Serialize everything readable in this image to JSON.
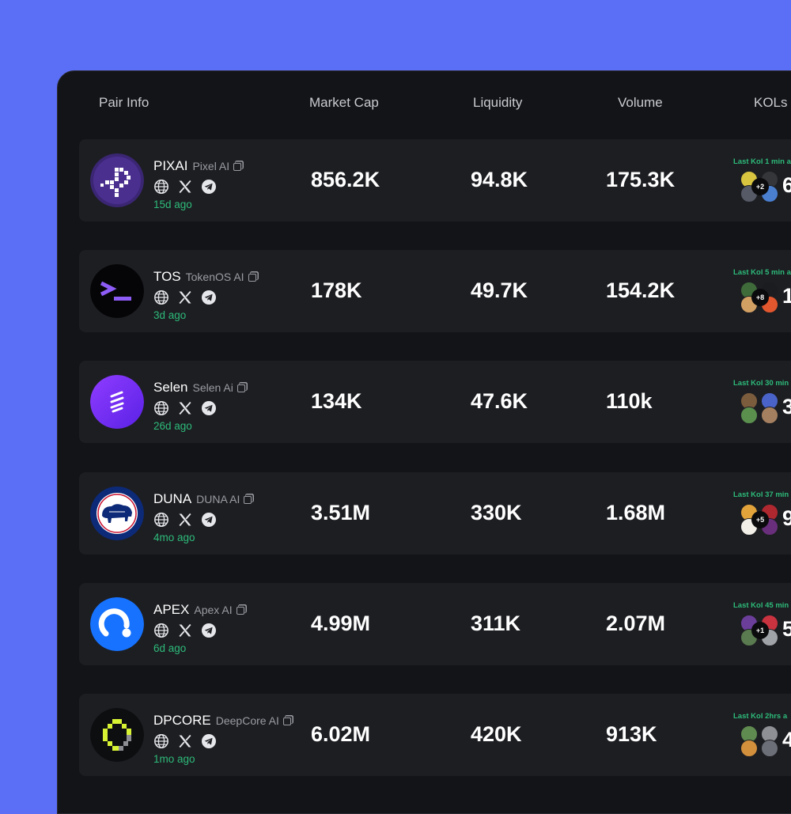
{
  "headers": {
    "pair_info": "Pair Info",
    "market_cap": "Market Cap",
    "liquidity": "Liquidity",
    "volume": "Volume",
    "kols": "KOLs"
  },
  "rows": [
    {
      "ticker": "PIXAI",
      "name": "Pixel AI",
      "age": "15d ago",
      "market_cap": "856.2K",
      "liquidity": "94.8K",
      "volume": "175.3K",
      "last_kol": "Last Kol 1 min a",
      "kol_plus": "+2",
      "kol_count": "6",
      "logo": "pixai-logo-icon"
    },
    {
      "ticker": "TOS",
      "name": "TokenOS AI",
      "age": "3d ago",
      "market_cap": "178K",
      "liquidity": "49.7K",
      "volume": "154.2K",
      "last_kol": "Last Kol 5 min a",
      "kol_plus": "+8",
      "kol_count": "1",
      "logo": "terminal-logo-icon"
    },
    {
      "ticker": "Selen",
      "name": "Selen Ai",
      "age": "26d ago",
      "market_cap": "134K",
      "liquidity": "47.6K",
      "volume": "110k",
      "last_kol": "Last Kol 30 min",
      "kol_plus": "",
      "kol_count": "3",
      "logo": "selen-logo-icon"
    },
    {
      "ticker": "DUNA",
      "name": "DUNA AI",
      "age": "4mo ago",
      "market_cap": "3.51M",
      "liquidity": "330K",
      "volume": "1.68M",
      "last_kol": "Last Kol 37 min",
      "kol_plus": "+5",
      "kol_count": "9",
      "logo": "bison-flag-logo-icon"
    },
    {
      "ticker": "APEX",
      "name": "Apex AI",
      "age": "6d ago",
      "market_cap": "4.99M",
      "liquidity": "311K",
      "volume": "2.07M",
      "last_kol": "Last Kol 45 min",
      "kol_plus": "+1",
      "kol_count": "5",
      "logo": "apex-logo-icon"
    },
    {
      "ticker": "DPCORE",
      "name": "DeepCore AI",
      "age": "1mo ago",
      "market_cap": "6.02M",
      "liquidity": "420K",
      "volume": "913K",
      "last_kol": "Last Kol 2hrs a",
      "kol_plus": "",
      "kol_count": "4",
      "logo": "deepcore-logo-icon"
    }
  ],
  "icons": {
    "website": "globe-icon",
    "x": "x-logo-icon",
    "telegram": "telegram-icon",
    "copy": "copy-icon"
  },
  "colors": {
    "background": "#5B6EF6",
    "panel": "#131417",
    "row": "#1d1e22",
    "accent_green": "#2dbb7a"
  }
}
